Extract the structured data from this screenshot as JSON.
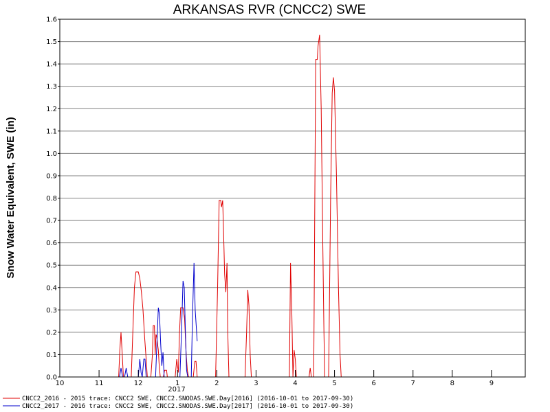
{
  "chart_data": {
    "type": "line",
    "title": "ARKANSAS RVR (CNCC2) SWE",
    "ylabel": "Snow Water Equivalent, SWE (in)",
    "xlabel": "",
    "year_label": "2017",
    "ylim": [
      0,
      1.6
    ],
    "xlim": [
      10,
      10.45
    ],
    "grid": true,
    "legend_placement": "bottom-left",
    "x_ticks": [
      {
        "value": 10,
        "label": "10"
      },
      {
        "value": 11,
        "label": "11"
      },
      {
        "value": 12,
        "label": "12"
      },
      {
        "value": 13,
        "label": "1"
      },
      {
        "value": 14,
        "label": "2"
      },
      {
        "value": 15,
        "label": "3"
      },
      {
        "value": 16,
        "label": "4"
      },
      {
        "value": 17,
        "label": "5"
      },
      {
        "value": 18,
        "label": "6"
      },
      {
        "value": 19,
        "label": "7"
      },
      {
        "value": 20,
        "label": "8"
      },
      {
        "value": 21,
        "label": "9"
      }
    ],
    "y_ticks": [
      "0.0",
      "0.1",
      "0.2",
      "0.3",
      "0.4",
      "0.5",
      "0.6",
      "0.7",
      "0.8",
      "0.9",
      "1.0",
      "1.1",
      "1.2",
      "1.3",
      "1.4",
      "1.5",
      "1.6"
    ],
    "series": [
      {
        "name": "CNCC2_2016 - 2015 trace: CNCC2 SWE, CNCC2.SNODAS.SWE.Day[2016] (2016-10-01 to 2017-09-30)",
        "color": "#e00000",
        "points": [
          [
            11.5,
            0
          ],
          [
            11.53,
            0.12
          ],
          [
            11.56,
            0.2
          ],
          [
            11.59,
            0.1
          ],
          [
            11.62,
            0
          ],
          [
            11.82,
            0
          ],
          [
            11.86,
            0.2
          ],
          [
            11.9,
            0.4
          ],
          [
            11.94,
            0.47
          ],
          [
            12.0,
            0.47
          ],
          [
            12.04,
            0.44
          ],
          [
            12.08,
            0.38
          ],
          [
            12.12,
            0.3
          ],
          [
            12.16,
            0.18
          ],
          [
            12.2,
            0.08
          ],
          [
            12.23,
            0
          ],
          [
            12.32,
            0
          ],
          [
            12.36,
            0.1
          ],
          [
            12.38,
            0.23
          ],
          [
            12.41,
            0.23
          ],
          [
            12.43,
            0.1
          ],
          [
            12.45,
            0.19
          ],
          [
            12.47,
            0.18
          ],
          [
            12.49,
            0.15
          ],
          [
            12.51,
            0.12
          ],
          [
            12.53,
            0.06
          ],
          [
            12.56,
            0
          ],
          [
            12.64,
            0
          ],
          [
            12.67,
            0.03
          ],
          [
            12.72,
            0.03
          ],
          [
            12.74,
            0
          ],
          [
            12.94,
            0
          ],
          [
            12.98,
            0.08
          ],
          [
            13.02,
            0.02
          ],
          [
            13.05,
            0.2
          ],
          [
            13.08,
            0.31
          ],
          [
            13.14,
            0.31
          ],
          [
            13.18,
            0.26
          ],
          [
            13.22,
            0.1
          ],
          [
            13.25,
            0.03
          ],
          [
            13.28,
            0
          ],
          [
            13.4,
            0
          ],
          [
            13.44,
            0.07
          ],
          [
            13.47,
            0.07
          ],
          [
            13.5,
            0
          ],
          [
            13.97,
            0
          ],
          [
            14.02,
            0.4
          ],
          [
            14.06,
            0.79
          ],
          [
            14.1,
            0.79
          ],
          [
            14.12,
            0.76
          ],
          [
            14.15,
            0.79
          ],
          [
            14.18,
            0.6
          ],
          [
            14.2,
            0.46
          ],
          [
            14.23,
            0.38
          ],
          [
            14.26,
            0.51
          ],
          [
            14.28,
            0.2
          ],
          [
            14.31,
            0
          ],
          [
            14.72,
            0
          ],
          [
            14.76,
            0.2
          ],
          [
            14.79,
            0.39
          ],
          [
            14.82,
            0.32
          ],
          [
            14.85,
            0.1
          ],
          [
            14.88,
            0
          ],
          [
            15.85,
            0
          ],
          [
            15.88,
            0.51
          ],
          [
            15.91,
            0.3
          ],
          [
            15.94,
            0
          ],
          [
            15.97,
            0.12
          ],
          [
            16.0,
            0.08
          ],
          [
            16.03,
            0
          ],
          [
            16.35,
            0
          ],
          [
            16.38,
            0.04
          ],
          [
            16.41,
            0
          ],
          [
            16.47,
            0
          ],
          [
            16.52,
            1.42
          ],
          [
            16.56,
            1.42
          ],
          [
            16.58,
            1.48
          ],
          [
            16.62,
            1.53
          ],
          [
            16.66,
            1.2
          ],
          [
            16.7,
            0.6
          ],
          [
            16.73,
            0.2
          ],
          [
            16.75,
            0
          ],
          [
            16.85,
            0
          ],
          [
            16.9,
            0.8
          ],
          [
            16.94,
            1.27
          ],
          [
            16.97,
            1.34
          ],
          [
            17.0,
            1.28
          ],
          [
            17.05,
            0.9
          ],
          [
            17.1,
            0.4
          ],
          [
            17.14,
            0.1
          ],
          [
            17.17,
            0
          ]
        ]
      },
      {
        "name": "CNCC2_2017 - 2016 trace: CNCC2 SWE, CNCC2.SNODAS.SWE.Day[2017] (2016-10-01 to 2017-09-30)",
        "color": "#0000cc",
        "points": [
          [
            11.52,
            0
          ],
          [
            11.56,
            0.04
          ],
          [
            11.6,
            0
          ],
          [
            11.65,
            0
          ],
          [
            11.69,
            0.04
          ],
          [
            11.73,
            0
          ],
          [
            12.0,
            0
          ],
          [
            12.04,
            0.08
          ],
          [
            12.07,
            0.02
          ],
          [
            12.1,
            0
          ],
          [
            12.14,
            0.08
          ],
          [
            12.17,
            0.08
          ],
          [
            12.2,
            0
          ],
          [
            12.44,
            0
          ],
          [
            12.48,
            0.18
          ],
          [
            12.51,
            0.31
          ],
          [
            12.54,
            0.28
          ],
          [
            12.57,
            0.15
          ],
          [
            12.6,
            0.05
          ],
          [
            12.63,
            0.11
          ],
          [
            12.66,
            0
          ],
          [
            13.06,
            0
          ],
          [
            13.1,
            0.2
          ],
          [
            13.14,
            0.43
          ],
          [
            13.17,
            0.4
          ],
          [
            13.2,
            0.2
          ],
          [
            13.23,
            0.03
          ],
          [
            13.26,
            0
          ],
          [
            13.35,
            0
          ],
          [
            13.38,
            0.26
          ],
          [
            13.42,
            0.51
          ],
          [
            13.45,
            0.3
          ],
          [
            13.48,
            0.22
          ],
          [
            13.5,
            0.16
          ]
        ]
      }
    ]
  }
}
